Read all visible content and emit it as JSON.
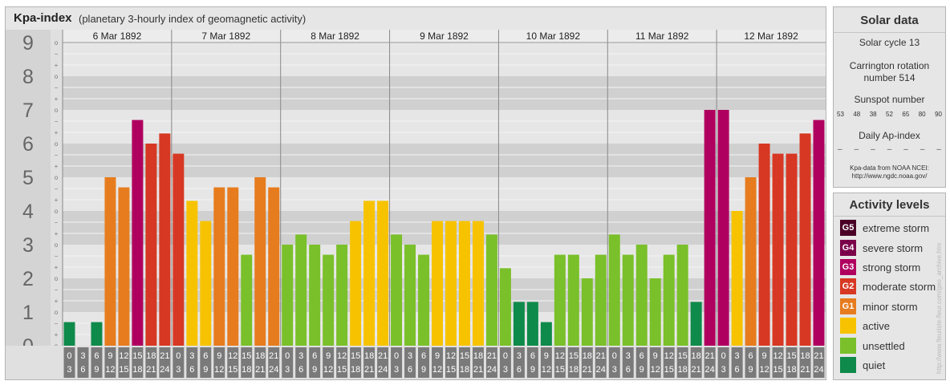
{
  "header": {
    "title": "Kpa-index",
    "subtitle": "(planetary 3-hourly index of geomagnetic activity)"
  },
  "colors": {
    "quiet": "#0e8a4a",
    "unsettled": "#7ac02a",
    "active": "#f7c300",
    "minor_storm": "#e77c1e",
    "moderate_storm": "#d73823",
    "strong_storm": "#b0005f",
    "severe_storm": "#7a004a",
    "extreme_storm": "#4a0026"
  },
  "chart_data": {
    "type": "bar",
    "title": "Kpa-index",
    "y_axis": {
      "range": [
        0,
        9
      ],
      "major_ticks": [
        "0",
        "1",
        "2",
        "3",
        "4",
        "5",
        "6",
        "7",
        "8",
        "9"
      ],
      "minor_tick_symbols": [
        "o",
        "+",
        "−"
      ]
    },
    "days": [
      "6 Mar 1892",
      "7 Mar 1892",
      "8 Mar 1892",
      "9 Mar 1892",
      "10 Mar 1892",
      "11 Mar 1892",
      "12 Mar 1892"
    ],
    "interval_labels": [
      [
        "0",
        "3"
      ],
      [
        "3",
        "6"
      ],
      [
        "6",
        "9"
      ],
      [
        "9",
        "12"
      ],
      [
        "12",
        "15"
      ],
      [
        "15",
        "18"
      ],
      [
        "18",
        "21"
      ],
      [
        "21",
        "24"
      ]
    ],
    "values": [
      [
        0.7,
        0.0,
        0.7,
        5.0,
        4.7,
        6.7,
        6.0,
        6.3
      ],
      [
        5.7,
        4.3,
        3.7,
        4.7,
        4.7,
        2.7,
        5.0,
        4.7
      ],
      [
        3.0,
        3.3,
        3.0,
        2.7,
        3.0,
        3.7,
        4.3,
        4.3
      ],
      [
        3.3,
        3.0,
        2.7,
        3.7,
        3.7,
        3.7,
        3.7,
        3.3
      ],
      [
        2.3,
        1.3,
        1.3,
        0.7,
        2.7,
        2.7,
        2.0,
        2.7
      ],
      [
        3.3,
        2.7,
        3.0,
        2.0,
        2.7,
        3.0,
        1.3,
        7.0
      ],
      [
        7.0,
        4.0,
        5.0,
        6.0,
        5.7,
        5.7,
        6.3,
        6.7
      ]
    ],
    "levels": [
      {
        "min": 0,
        "max": 1.7,
        "key": "quiet"
      },
      {
        "min": 1.7,
        "max": 3.5,
        "key": "unsettled"
      },
      {
        "min": 3.5,
        "max": 4.5,
        "key": "active"
      },
      {
        "min": 4.5,
        "max": 5.5,
        "key": "minor_storm"
      },
      {
        "min": 5.5,
        "max": 6.5,
        "key": "moderate_storm"
      },
      {
        "min": 6.5,
        "max": 7.5,
        "key": "strong_storm"
      },
      {
        "min": 7.5,
        "max": 8.5,
        "key": "severe_storm"
      },
      {
        "min": 8.5,
        "max": 9.1,
        "key": "extreme_storm"
      }
    ]
  },
  "solar_data": {
    "title": "Solar data",
    "solar_cycle": "Solar cycle 13",
    "carrington_line1": "Carrington rotation",
    "carrington_line2": "number 514",
    "sunspot_label": "Sunspot number",
    "sunspot_values": [
      "53",
      "48",
      "38",
      "52",
      "65",
      "80",
      "90"
    ],
    "ap_label": "Daily Ap-index",
    "ap_values": [
      "–",
      "–",
      "–",
      "–",
      "–",
      "–",
      "–"
    ],
    "source_line1": "Kpa-data from NOAA NCEI:",
    "source_line2": "http://www.ngdc.noaa.gov/"
  },
  "activity_levels": {
    "title": "Activity levels",
    "items": [
      {
        "code": "G5",
        "label": "extreme storm",
        "color_key": "extreme_storm"
      },
      {
        "code": "G4",
        "label": "severe storm",
        "color_key": "severe_storm"
      },
      {
        "code": "G3",
        "label": "strong storm",
        "color_key": "strong_storm"
      },
      {
        "code": "G2",
        "label": "moderate storm",
        "color_key": "moderate_storm"
      },
      {
        "code": "G1",
        "label": "minor storm",
        "color_key": "minor_storm"
      },
      {
        "code": "",
        "label": "active",
        "color_key": "active"
      },
      {
        "code": "",
        "label": "unsettled",
        "color_key": "unsettled"
      },
      {
        "code": "",
        "label": "quiet",
        "color_key": "quiet"
      }
    ]
  },
  "watermark": "http://www.fleuriste-fleur.com/geo_archive.htm"
}
